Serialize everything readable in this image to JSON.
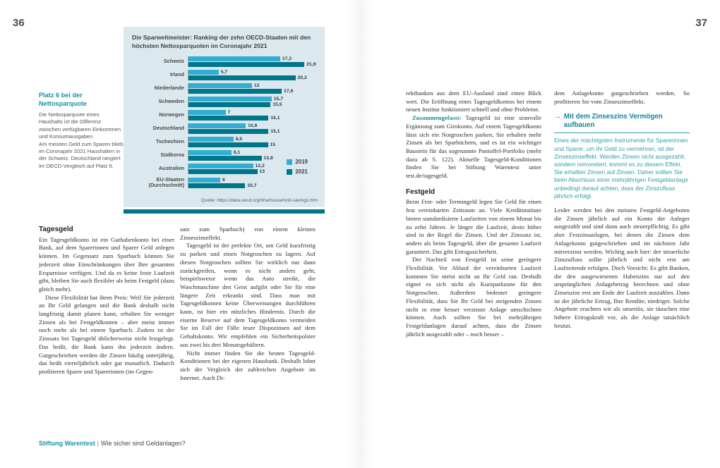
{
  "page_left": {
    "number": "36",
    "margin_note": {
      "title": "Platz 6 bei der Nettosparquote",
      "body1": "Die Nettosparquote eines Haushalts ist die Differenz zwischen verfügbaren Einkommen und Konsumausgaben.",
      "body2": "Am meisten Geld zum Sparen blieb im Coronajahr 2021 Haushalten in der Schweiz. Deutschland rangiert im OECD-Vergleich auf Platz 6."
    },
    "article": {
      "heading": "Tagesgeld",
      "col1_para1": "Ein Tagesgeldkonto ist ein Guthabenkonto bei einer Bank, auf dem Sparerinnen und Sparer Geld anlegen können. Im Gegensatz zum Sparbuch können Sie jederzeit ohne Einschränkungen über Ihre gesamten Ersparnisse verfügen. Und da es keine feste Laufzeit gibt, bleiben Sie auch flexibler als beim Festgeld (dazu gleich mehr).",
      "col1_para2": "Diese Flexibilität hat ihren Preis: Weil Sie jederzeit an Ihr Geld gelangen und die Bank deshalb nicht langfristig damit planen kann, erhalten Sie weniger Zinsen als bei Festgeldkonten – aber meist immer noch mehr als bei einem Sparbuch. Zudem ist der Zinssatz bei Tagesgeld üblicherweise nicht festgelegt. Das heißt, die Bank kann ihn jederzeit ändern. Gutgeschrieben werden die Zinsen häufig unterjährig, das heißt vierteljährlich oder gar monatlich. Dadurch profitieren Sparer und Sparerinnen (im Gegen-",
      "col2_para1": "satz zum Sparbuch) von einem kleinen Zinseszinseffekt.",
      "col2_para2": "Tagesgeld ist der perfekte Ort, um Geld kurzfristig zu parken und einen Notgroschen zu lagern. Auf diesen Notgroschen sollten Sie wirklich nur dann zurückgreifen, wenn es nicht anders geht, beispielsweise wenn das Auto streikt, die Waschmaschine den Geist aufgibt oder Sie für eine längere Zeit erkrankt sind. Dass man mit Tagesgeldkonten keine Überweisungen durchführen kann, ist hier ein nützliches Hindernis. Durch die eiserne Reserve auf dem Tagesgeldkonto vermeiden Sie im Fall der Fälle teure Dispozinsen auf dem Gehaltskonto. Wir empfehlen ein Sicherheitspolster aus zwei bis drei Monatsgehältern.",
      "col2_para3": "Nicht immer finden Sie die besten Tagesgeld-Konditionen bei der eigenen Hausbank. Deshalb lohnt sich der Vergleich der zahlreichen Angebote im Internet. Auch Di-"
    },
    "footer": {
      "brand": "Stiftung Warentest",
      "separator": "|",
      "title": "Wie sicher sind Geldanlagen?"
    }
  },
  "page_right": {
    "number": "37",
    "col3": {
      "para1": "rektbanken aus dem EU-Ausland sind einen Blick wert. Die Eröffnung eines Tagesgeldkontos bei einem neuen Institut funktioniert schnell und ohne Probleme.",
      "summary_lead": "Zusammengefasst:",
      "summary_rest": " Tagesgeld ist eine sinnvolle Ergänzung zum Girokonto. Auf einem Tagesgeldkonto lässt sich ein Notgroschen parken, Sie erhalten mehr Zinsen als bei Sparbüchern, und es ist ein wichtiger Baustein für das sogenannte Pantoffel-Portfolio (mehr dazu ab S. 122). Aktuelle Tagesgeld-Konditionen finden Sie bei Stiftung Warentest unter test.de/tagesgeld.",
      "heading2": "Festgeld",
      "para3": "Beim Fest- oder Termingeld legen Sie Geld für einen fest vereinbarten Zeitraum an. Viele Kreditinstitute bieten standardisierte Laufzeiten von einem Monat bis zu zehn Jahren. Je länger die Laufzeit, desto höher sind in der Regel die Zinsen. Und der Zinssatz ist, anders als beim Tagesgeld, über die gesamte Laufzeit garantiert. Das gibt Ertragssicherheit.",
      "para4": "Der Nachteil von Festgeld ist seine geringere Flexibilität. Vor Ablauf der vereinbarten Laufzeit kommen Sie meist nicht an Ihr Geld ran. Deshalb eignet es sich nicht als Kurzparkzone für den Notgroschen. Außerdem bedeutet geringere Flexibilität, dass Sie Ihr Geld bei steigenden Zinsen nicht in eine besser verzinste Anlage umschichten können. Auch sollten Sie bei mehrjährigen Festgeldanlagen darauf achten, dass die Zinsen jährlich ausgezahlt oder – noch besser –"
    },
    "col4": {
      "intro": "dem Anlagekonto gutgeschrieben werden. So profitieren Sie vom Zinseszinseffekt.",
      "callout": {
        "arrow": "→",
        "title": "Mit dem Zinseszins Vermögen aufbauen",
        "body": "Eines der mächtigsten Instrumente für Sparerinnen und Sparer, um ihr Geld zu vermehren, ist der Zinseszinseffekt. Werden Zinsen nicht ausgezahlt, sondern reinvestiert, kommt es zu diesem Effekt. Sie erhalten Zinsen auf Zinsen. Daher sollten Sie beim Abschluss einer mehrjährigen Festgeldanlage unbedingt darauf achten, dass der Zinszufluss jährlich erfolgt."
      },
      "para_after": "Leider werden bei den meisten Festgeld-Angeboten die Zinsen jährlich auf ein Konto der Anleger ausgezahlt und sind dann auch steuerpflichtig. Es gibt aber Festzinsanlagen, bei denen die Zinsen dem Anlagekonto gutgeschrieben und im nächsten Jahr mitverzinst werden. Wichtig auch hier: der steuerliche Zinszufluss sollte jährlich und nicht erst am Laufzeitende erfolgen. Doch Vorsicht: Es gibt Banken, die den ausgewiesenen Habenzins nur auf den ursprünglichen Anlagebetrag berechnen und ohne Zinseszins erst am Ende der Laufzeit auszahlen. Dann ist der jährliche Ertrag, Ihre Rendite, niedriger. Solche Angebote erachten wir als unseriös, sie täuschen eine höhere Ertragskraft vor, als die Anlage tatsächlich besitzt."
    }
  },
  "chart_data": {
    "type": "bar",
    "orientation": "horizontal",
    "title": "Die Sparweltmeister: Ranking der zehn OECD-Staaten mit den höchsten Nettosparquoten im Coronajahr 2021",
    "categories": [
      "Schweiz",
      "Irland",
      "Niederlande",
      "Schweden",
      "Norwegen",
      "Deutschland",
      "Tschechien",
      "Südkorea",
      "Australien",
      "EU-Staaten (Durchschnitt)"
    ],
    "series": [
      {
        "name": "2019",
        "color": "#31aed1",
        "values": [
          17.3,
          5.7,
          12,
          15.7,
          7,
          10.8,
          8.5,
          8.1,
          12.2,
          6
        ]
      },
      {
        "name": "2021",
        "color": "#00768a",
        "values": [
          21.9,
          20.2,
          17.6,
          15.5,
          15.1,
          15.1,
          15,
          13.8,
          13,
          10.7
        ]
      }
    ],
    "value_labels": [
      [
        "17,3",
        "5,7",
        "12",
        "15,7",
        "7",
        "10,8",
        "8,5",
        "8,1",
        "12,2",
        "6"
      ],
      [
        "21,9",
        "20,2",
        "17,6",
        "15,5",
        "15,1",
        "15,1",
        "15",
        "13,8",
        "13",
        "10,7"
      ]
    ],
    "xlim": [
      0,
      24
    ],
    "grid": false,
    "legend_position": "bottom-right",
    "background": "#dbe9ee",
    "source": "Quelle: https://data.oecd.org/hha/household-savings.htm"
  }
}
